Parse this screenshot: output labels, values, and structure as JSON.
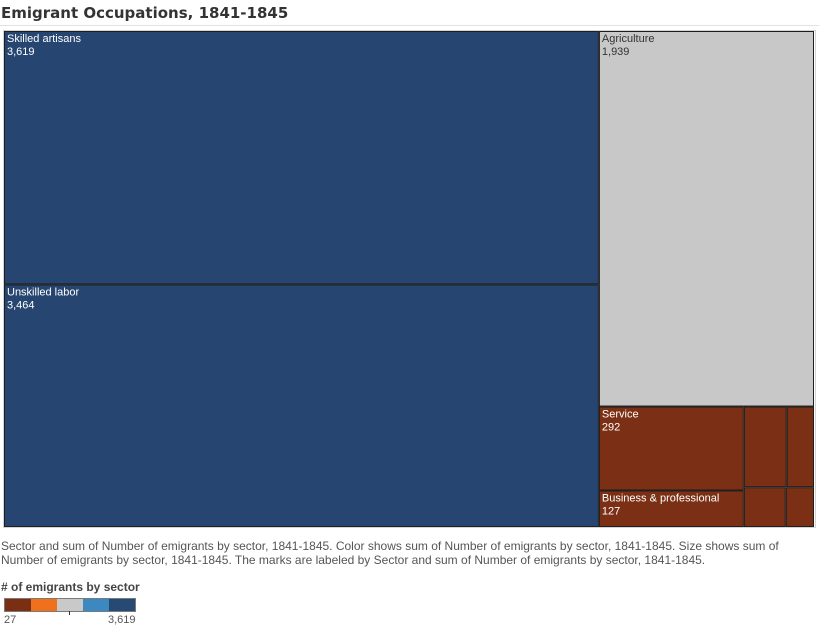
{
  "title": "Emigrant Occupations, 1841-1845",
  "caption": "Sector and sum of Number of emigrants by sector, 1841-1845.  Color shows sum of Number of emigrants by sector, 1841-1845.  Size shows sum of Number of emigrants by sector, 1841-1845.  The marks are labeled by Sector and sum of Number of emigrants by sector, 1841-1845.",
  "legend": {
    "title": "# of emigrants by sector",
    "min_label": "27",
    "max_label": "3,619",
    "colors": [
      "#7a2e12",
      "#f0701c",
      "#c9c9c9",
      "#3c88c0",
      "#264a73"
    ]
  },
  "chart_data": {
    "type": "treemap",
    "title": "Emigrant Occupations, 1841-1845",
    "color_range": [
      27,
      3619
    ],
    "items": [
      {
        "name": "Skilled artisans",
        "value": 3619,
        "label": "3,619",
        "color": "#264570",
        "text_color": "#ffffff"
      },
      {
        "name": "Unskilled labor",
        "value": 3464,
        "label": "3,464",
        "color": "#264570",
        "text_color": "#ffffff"
      },
      {
        "name": "Agriculture",
        "value": 1939,
        "label": "1,939",
        "color": "#c8c8c8",
        "text_color": "#333333"
      },
      {
        "name": "Service",
        "value": 292,
        "label": "292",
        "color": "#7b3015",
        "text_color": "#ffffff"
      },
      {
        "name": "Business & professional",
        "value": 127,
        "label": "127",
        "color": "#7b3015",
        "text_color": "#ffffff"
      },
      {
        "name": "",
        "value": 83,
        "label": "",
        "color": "#7b3015",
        "text_color": "#ffffff"
      },
      {
        "name": "",
        "value": 53,
        "label": "",
        "color": "#7b3015",
        "text_color": "#ffffff"
      },
      {
        "name": "",
        "value": 40,
        "label": "",
        "color": "#7b3015",
        "text_color": "#ffffff"
      },
      {
        "name": "",
        "value": 27,
        "label": "",
        "color": "#7b3015",
        "text_color": "#ffffff"
      }
    ]
  }
}
